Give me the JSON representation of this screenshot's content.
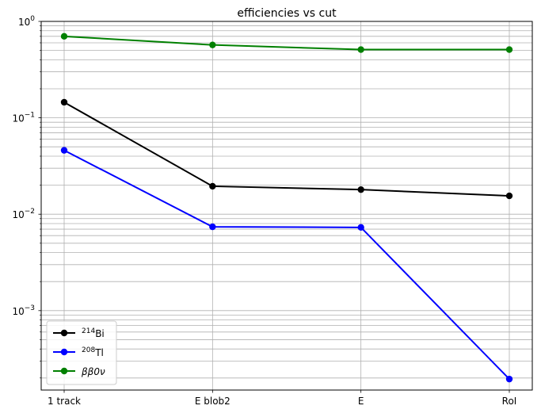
{
  "chart_data": {
    "type": "line",
    "title": "efficiencies vs cut",
    "xlabel": "",
    "ylabel": "",
    "categories": [
      "1 track",
      "E blob2",
      "E",
      "RoI"
    ],
    "y_scale": "log",
    "ylim": [
      0.00015,
      1.0
    ],
    "y_major_ticks": [
      0.001,
      0.01,
      0.1,
      1
    ],
    "y_tick_labels": [
      {
        "base": "10",
        "exp": "−3"
      },
      {
        "base": "10",
        "exp": "−2"
      },
      {
        "base": "10",
        "exp": "−1"
      },
      {
        "base": "10",
        "exp": "0"
      }
    ],
    "grid": true,
    "grid_minor": true,
    "legend_position": "lower-left",
    "series": [
      {
        "name_sup": "214",
        "name_base": "Bi",
        "color": "#000000",
        "values": [
          0.145,
          0.0195,
          0.018,
          0.0155
        ]
      },
      {
        "name_sup": "208",
        "name_base": "Tl",
        "color": "#0000ff",
        "values": [
          0.046,
          0.0074,
          0.0073,
          0.000195
        ]
      },
      {
        "name_sup": "",
        "name_base": "ββ0ν",
        "color": "#008000",
        "values": [
          0.7,
          0.57,
          0.51,
          0.51
        ]
      }
    ]
  }
}
